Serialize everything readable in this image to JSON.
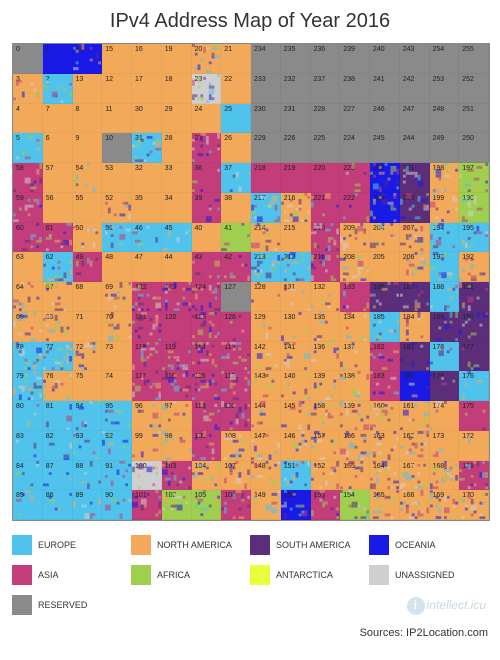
{
  "title": "IPv4 Address Map of Year 2016",
  "source": "Sources: IP2Location.com",
  "watermark": "intellect.icu",
  "grid": {
    "cols": 16,
    "rows": 16,
    "cell_font_size": 7,
    "label_color": "#222222"
  },
  "regions": {
    "E": {
      "name": "EUROPE",
      "color": "#4fc3eb"
    },
    "N": {
      "name": "NORTH AMERICA",
      "color": "#f3a95a"
    },
    "S": {
      "name": "SOUTH AMERICA",
      "color": "#5c2d7a"
    },
    "O": {
      "name": "OCEANIA",
      "color": "#1a1ae6"
    },
    "A": {
      "name": "ASIA",
      "color": "#c23d7a"
    },
    "F": {
      "name": "AFRICA",
      "color": "#9ecf4e"
    },
    "T": {
      "name": "ANTARCTICA",
      "color": "#e9ff3b"
    },
    "U": {
      "name": "UNASSIGNED",
      "color": "#cfcfcf"
    },
    "R": {
      "name": "RESERVED",
      "color": "#8a8a8a"
    }
  },
  "legend_order": [
    "E",
    "N",
    "S",
    "O",
    "A",
    "F",
    "T",
    "U",
    "R"
  ],
  "cells": [
    {
      "n": 0,
      "r": "R",
      "x": 0
    },
    {
      "n": 1,
      "r": "O",
      "x": 0
    },
    {
      "n": 14,
      "r": "O",
      "x": 1
    },
    {
      "n": 15,
      "r": "N",
      "x": 0
    },
    {
      "n": 16,
      "r": "N",
      "x": 0
    },
    {
      "n": 19,
      "r": "N",
      "x": 0
    },
    {
      "n": 20,
      "r": "N",
      "x": 1
    },
    {
      "n": 21,
      "r": "N",
      "x": 0
    },
    {
      "n": 234,
      "r": "R",
      "x": 0
    },
    {
      "n": 235,
      "r": "R",
      "x": 0
    },
    {
      "n": 236,
      "r": "R",
      "x": 0
    },
    {
      "n": 239,
      "r": "R",
      "x": 0
    },
    {
      "n": 240,
      "r": "R",
      "x": 0
    },
    {
      "n": 243,
      "r": "R",
      "x": 0
    },
    {
      "n": 254,
      "r": "R",
      "x": 0
    },
    {
      "n": 255,
      "r": "R",
      "x": 0
    },
    {
      "n": 3,
      "r": "N",
      "x": 1
    },
    {
      "n": 2,
      "r": "E",
      "x": 1
    },
    {
      "n": 13,
      "r": "N",
      "x": 0
    },
    {
      "n": 12,
      "r": "N",
      "x": 0
    },
    {
      "n": 17,
      "r": "N",
      "x": 0
    },
    {
      "n": 18,
      "r": "N",
      "x": 0
    },
    {
      "n": 23,
      "r": "U",
      "x": 1
    },
    {
      "n": 22,
      "r": "N",
      "x": 0
    },
    {
      "n": 233,
      "r": "R",
      "x": 0
    },
    {
      "n": 232,
      "r": "R",
      "x": 0
    },
    {
      "n": 237,
      "r": "R",
      "x": 0
    },
    {
      "n": 238,
      "r": "R",
      "x": 0
    },
    {
      "n": 241,
      "r": "R",
      "x": 0
    },
    {
      "n": 242,
      "r": "R",
      "x": 0
    },
    {
      "n": 253,
      "r": "R",
      "x": 0
    },
    {
      "n": 252,
      "r": "R",
      "x": 0
    },
    {
      "n": 4,
      "r": "N",
      "x": 0
    },
    {
      "n": 7,
      "r": "N",
      "x": 0
    },
    {
      "n": 8,
      "r": "N",
      "x": 0
    },
    {
      "n": 11,
      "r": "N",
      "x": 0
    },
    {
      "n": 30,
      "r": "N",
      "x": 0
    },
    {
      "n": 29,
      "r": "N",
      "x": 0
    },
    {
      "n": 24,
      "r": "N",
      "x": 0
    },
    {
      "n": 25,
      "r": "E",
      "x": 0
    },
    {
      "n": 230,
      "r": "R",
      "x": 0
    },
    {
      "n": 231,
      "r": "R",
      "x": 0
    },
    {
      "n": 228,
      "r": "R",
      "x": 0
    },
    {
      "n": 227,
      "r": "R",
      "x": 0
    },
    {
      "n": 246,
      "r": "R",
      "x": 0
    },
    {
      "n": 247,
      "r": "R",
      "x": 0
    },
    {
      "n": 248,
      "r": "R",
      "x": 0
    },
    {
      "n": 251,
      "r": "R",
      "x": 0
    },
    {
      "n": 5,
      "r": "E",
      "x": 1
    },
    {
      "n": 6,
      "r": "N",
      "x": 0
    },
    {
      "n": 9,
      "r": "N",
      "x": 0
    },
    {
      "n": 10,
      "r": "R",
      "x": 0
    },
    {
      "n": 31,
      "r": "E",
      "x": 1
    },
    {
      "n": 28,
      "r": "N",
      "x": 0
    },
    {
      "n": 27,
      "r": "A",
      "x": 1
    },
    {
      "n": 26,
      "r": "N",
      "x": 0
    },
    {
      "n": 229,
      "r": "R",
      "x": 0
    },
    {
      "n": 226,
      "r": "R",
      "x": 0
    },
    {
      "n": 225,
      "r": "R",
      "x": 0
    },
    {
      "n": 224,
      "r": "R",
      "x": 0
    },
    {
      "n": 245,
      "r": "R",
      "x": 0
    },
    {
      "n": 244,
      "r": "R",
      "x": 0
    },
    {
      "n": 249,
      "r": "R",
      "x": 0
    },
    {
      "n": 250,
      "r": "R",
      "x": 0
    },
    {
      "n": 58,
      "r": "A",
      "x": 1
    },
    {
      "n": 57,
      "r": "N",
      "x": 0
    },
    {
      "n": 54,
      "r": "N",
      "x": 1
    },
    {
      "n": 53,
      "r": "N",
      "x": 0
    },
    {
      "n": 32,
      "r": "N",
      "x": 0
    },
    {
      "n": 33,
      "r": "N",
      "x": 0
    },
    {
      "n": 36,
      "r": "A",
      "x": 1
    },
    {
      "n": 37,
      "r": "E",
      "x": 1
    },
    {
      "n": 218,
      "r": "A",
      "x": 0
    },
    {
      "n": 219,
      "r": "A",
      "x": 0
    },
    {
      "n": 220,
      "r": "A",
      "x": 0
    },
    {
      "n": 223,
      "r": "A",
      "x": 1
    },
    {
      "n": 202,
      "r": "O",
      "x": 1
    },
    {
      "n": 201,
      "r": "S",
      "x": 1
    },
    {
      "n": 198,
      "r": "N",
      "x": 1
    },
    {
      "n": 197,
      "r": "F",
      "x": 1
    },
    {
      "n": 59,
      "r": "A",
      "x": 1
    },
    {
      "n": 56,
      "r": "N",
      "x": 0
    },
    {
      "n": 55,
      "r": "N",
      "x": 0
    },
    {
      "n": 52,
      "r": "N",
      "x": 1
    },
    {
      "n": 35,
      "r": "N",
      "x": 0
    },
    {
      "n": 34,
      "r": "N",
      "x": 0
    },
    {
      "n": 39,
      "r": "A",
      "x": 1
    },
    {
      "n": 38,
      "r": "N",
      "x": 0
    },
    {
      "n": 217,
      "r": "E",
      "x": 1
    },
    {
      "n": 216,
      "r": "N",
      "x": 1
    },
    {
      "n": 221,
      "r": "A",
      "x": 1
    },
    {
      "n": 222,
      "r": "A",
      "x": 1
    },
    {
      "n": 203,
      "r": "O",
      "x": 1
    },
    {
      "n": 200,
      "r": "S",
      "x": 1
    },
    {
      "n": 199,
      "r": "N",
      "x": 1
    },
    {
      "n": 196,
      "r": "F",
      "x": 1
    },
    {
      "n": 60,
      "r": "A",
      "x": 1
    },
    {
      "n": 61,
      "r": "A",
      "x": 1
    },
    {
      "n": 50,
      "r": "N",
      "x": 1
    },
    {
      "n": 51,
      "r": "E",
      "x": 1
    },
    {
      "n": 46,
      "r": "E",
      "x": 1
    },
    {
      "n": 45,
      "r": "E",
      "x": 1
    },
    {
      "n": 40,
      "r": "N",
      "x": 0
    },
    {
      "n": 41,
      "r": "F",
      "x": 1
    },
    {
      "n": 214,
      "r": "N",
      "x": 1
    },
    {
      "n": 215,
      "r": "N",
      "x": 0
    },
    {
      "n": 210,
      "r": "A",
      "x": 1
    },
    {
      "n": 209,
      "r": "N",
      "x": 1
    },
    {
      "n": 204,
      "r": "N",
      "x": 1
    },
    {
      "n": 207,
      "r": "N",
      "x": 1
    },
    {
      "n": 194,
      "r": "E",
      "x": 1
    },
    {
      "n": 195,
      "r": "E",
      "x": 1
    },
    {
      "n": 63,
      "r": "N",
      "x": 0
    },
    {
      "n": 62,
      "r": "E",
      "x": 1
    },
    {
      "n": 49,
      "r": "A",
      "x": 1
    },
    {
      "n": 48,
      "r": "N",
      "x": 0
    },
    {
      "n": 47,
      "r": "N",
      "x": 0
    },
    {
      "n": 44,
      "r": "N",
      "x": 0
    },
    {
      "n": 43,
      "r": "A",
      "x": 1
    },
    {
      "n": 42,
      "r": "A",
      "x": 1
    },
    {
      "n": 213,
      "r": "E",
      "x": 1
    },
    {
      "n": 212,
      "r": "E",
      "x": 1
    },
    {
      "n": 211,
      "r": "A",
      "x": 1
    },
    {
      "n": 208,
      "r": "N",
      "x": 1
    },
    {
      "n": 205,
      "r": "N",
      "x": 0
    },
    {
      "n": 206,
      "r": "N",
      "x": 1
    },
    {
      "n": 193,
      "r": "E",
      "x": 1
    },
    {
      "n": 192,
      "r": "N",
      "x": 1
    },
    {
      "n": 64,
      "r": "N",
      "x": 1
    },
    {
      "n": 67,
      "r": "N",
      "x": 1
    },
    {
      "n": 68,
      "r": "N",
      "x": 0
    },
    {
      "n": 69,
      "r": "N",
      "x": 1
    },
    {
      "n": 122,
      "r": "A",
      "x": 1
    },
    {
      "n": 123,
      "r": "A",
      "x": 1
    },
    {
      "n": 124,
      "r": "A",
      "x": 1
    },
    {
      "n": 127,
      "r": "R",
      "x": 0
    },
    {
      "n": 128,
      "r": "N",
      "x": 1
    },
    {
      "n": 131,
      "r": "N",
      "x": 1
    },
    {
      "n": 132,
      "r": "N",
      "x": 1
    },
    {
      "n": 133,
      "r": "A",
      "x": 1
    },
    {
      "n": 186,
      "r": "S",
      "x": 1
    },
    {
      "n": 187,
      "r": "S",
      "x": 1
    },
    {
      "n": 188,
      "r": "E",
      "x": 1
    },
    {
      "n": 191,
      "r": "S",
      "x": 1
    },
    {
      "n": 65,
      "r": "N",
      "x": 1
    },
    {
      "n": 66,
      "r": "N",
      "x": 1
    },
    {
      "n": 71,
      "r": "N",
      "x": 0
    },
    {
      "n": 70,
      "r": "N",
      "x": 1
    },
    {
      "n": 121,
      "r": "A",
      "x": 1
    },
    {
      "n": 120,
      "r": "A",
      "x": 0
    },
    {
      "n": 125,
      "r": "A",
      "x": 1
    },
    {
      "n": 126,
      "r": "A",
      "x": 1
    },
    {
      "n": 129,
      "r": "N",
      "x": 1
    },
    {
      "n": 130,
      "r": "N",
      "x": 1
    },
    {
      "n": 135,
      "r": "N",
      "x": 1
    },
    {
      "n": 134,
      "r": "N",
      "x": 1
    },
    {
      "n": 185,
      "r": "E",
      "x": 1
    },
    {
      "n": 184,
      "r": "N",
      "x": 1
    },
    {
      "n": 189,
      "r": "S",
      "x": 1
    },
    {
      "n": 190,
      "r": "S",
      "x": 1
    },
    {
      "n": 78,
      "r": "E",
      "x": 1
    },
    {
      "n": 77,
      "r": "E",
      "x": 1
    },
    {
      "n": 72,
      "r": "N",
      "x": 1
    },
    {
      "n": 73,
      "r": "N",
      "x": 0
    },
    {
      "n": 118,
      "r": "A",
      "x": 1
    },
    {
      "n": 119,
      "r": "A",
      "x": 1
    },
    {
      "n": 114,
      "r": "A",
      "x": 1
    },
    {
      "n": 113,
      "r": "A",
      "x": 1
    },
    {
      "n": 142,
      "r": "N",
      "x": 1
    },
    {
      "n": 141,
      "r": "N",
      "x": 1
    },
    {
      "n": 136,
      "r": "N",
      "x": 1
    },
    {
      "n": 137,
      "r": "N",
      "x": 1
    },
    {
      "n": 182,
      "r": "A",
      "x": 1
    },
    {
      "n": 181,
      "r": "S",
      "x": 1
    },
    {
      "n": 178,
      "r": "E",
      "x": 1
    },
    {
      "n": 177,
      "r": "S",
      "x": 1
    },
    {
      "n": 79,
      "r": "E",
      "x": 1
    },
    {
      "n": 76,
      "r": "N",
      "x": 1
    },
    {
      "n": 75,
      "r": "N",
      "x": 0
    },
    {
      "n": 74,
      "r": "N",
      "x": 0
    },
    {
      "n": 117,
      "r": "A",
      "x": 1
    },
    {
      "n": 116,
      "r": "A",
      "x": 1
    },
    {
      "n": 115,
      "r": "A",
      "x": 1
    },
    {
      "n": 112,
      "r": "A",
      "x": 1
    },
    {
      "n": 143,
      "r": "N",
      "x": 1
    },
    {
      "n": 140,
      "r": "N",
      "x": 1
    },
    {
      "n": 139,
      "r": "N",
      "x": 1
    },
    {
      "n": 138,
      "r": "N",
      "x": 1
    },
    {
      "n": 183,
      "r": "A",
      "x": 1
    },
    {
      "n": 180,
      "r": "O",
      "x": 1
    },
    {
      "n": 179,
      "r": "S",
      "x": 1
    },
    {
      "n": 176,
      "r": "E",
      "x": 1
    },
    {
      "n": 80,
      "r": "E",
      "x": 1
    },
    {
      "n": 81,
      "r": "E",
      "x": 1
    },
    {
      "n": 94,
      "r": "E",
      "x": 1
    },
    {
      "n": 95,
      "r": "E",
      "x": 1
    },
    {
      "n": 96,
      "r": "N",
      "x": 1
    },
    {
      "n": 97,
      "r": "N",
      "x": 1
    },
    {
      "n": 110,
      "r": "A",
      "x": 1
    },
    {
      "n": 111,
      "r": "A",
      "x": 1
    },
    {
      "n": 144,
      "r": "N",
      "x": 1
    },
    {
      "n": 145,
      "r": "N",
      "x": 1
    },
    {
      "n": 158,
      "r": "N",
      "x": 1
    },
    {
      "n": 159,
      "r": "N",
      "x": 1
    },
    {
      "n": 160,
      "r": "N",
      "x": 1
    },
    {
      "n": 161,
      "r": "N",
      "x": 1
    },
    {
      "n": 174,
      "r": "N",
      "x": 1
    },
    {
      "n": 175,
      "r": "A",
      "x": 1
    },
    {
      "n": 83,
      "r": "E",
      "x": 1
    },
    {
      "n": 82,
      "r": "E",
      "x": 1
    },
    {
      "n": 93,
      "r": "E",
      "x": 1
    },
    {
      "n": 92,
      "r": "E",
      "x": 1
    },
    {
      "n": 99,
      "r": "N",
      "x": 1
    },
    {
      "n": 98,
      "r": "N",
      "x": 1
    },
    {
      "n": 109,
      "r": "A",
      "x": 1
    },
    {
      "n": 108,
      "r": "N",
      "x": 1
    },
    {
      "n": 147,
      "r": "N",
      "x": 1
    },
    {
      "n": 146,
      "r": "N",
      "x": 1
    },
    {
      "n": 157,
      "r": "N",
      "x": 1
    },
    {
      "n": 156,
      "r": "N",
      "x": 1
    },
    {
      "n": 163,
      "r": "N",
      "x": 1
    },
    {
      "n": 162,
      "r": "N",
      "x": 1
    },
    {
      "n": 173,
      "r": "N",
      "x": 1
    },
    {
      "n": 172,
      "r": "N",
      "x": 1
    },
    {
      "n": 84,
      "r": "E",
      "x": 1
    },
    {
      "n": 87,
      "r": "E",
      "x": 1
    },
    {
      "n": 88,
      "r": "E",
      "x": 1
    },
    {
      "n": 91,
      "r": "E",
      "x": 1
    },
    {
      "n": 100,
      "r": "U",
      "x": 1
    },
    {
      "n": 103,
      "r": "A",
      "x": 1
    },
    {
      "n": 104,
      "r": "N",
      "x": 1
    },
    {
      "n": 107,
      "r": "N",
      "x": 1
    },
    {
      "n": 148,
      "r": "N",
      "x": 1
    },
    {
      "n": 151,
      "r": "E",
      "x": 1
    },
    {
      "n": 152,
      "r": "N",
      "x": 1
    },
    {
      "n": 155,
      "r": "N",
      "x": 1
    },
    {
      "n": 164,
      "r": "N",
      "x": 1
    },
    {
      "n": 167,
      "r": "N",
      "x": 1
    },
    {
      "n": 168,
      "r": "N",
      "x": 1
    },
    {
      "n": 171,
      "r": "A",
      "x": 1
    },
    {
      "n": 85,
      "r": "E",
      "x": 1
    },
    {
      "n": 86,
      "r": "E",
      "x": 1
    },
    {
      "n": 89,
      "r": "E",
      "x": 1
    },
    {
      "n": 90,
      "r": "E",
      "x": 1
    },
    {
      "n": 101,
      "r": "A",
      "x": 1
    },
    {
      "n": 102,
      "r": "F",
      "x": 1
    },
    {
      "n": 105,
      "r": "F",
      "x": 1
    },
    {
      "n": 106,
      "r": "A",
      "x": 1
    },
    {
      "n": 149,
      "r": "N",
      "x": 1
    },
    {
      "n": 150,
      "r": "O",
      "x": 1
    },
    {
      "n": 153,
      "r": "A",
      "x": 1
    },
    {
      "n": 154,
      "r": "F",
      "x": 1
    },
    {
      "n": 165,
      "r": "N",
      "x": 1
    },
    {
      "n": 166,
      "r": "N",
      "x": 1
    },
    {
      "n": 169,
      "r": "N",
      "x": 1
    },
    {
      "n": 170,
      "r": "N",
      "x": 1
    }
  ],
  "noise_palette": [
    "E",
    "N",
    "S",
    "O",
    "A",
    "F",
    "U"
  ]
}
